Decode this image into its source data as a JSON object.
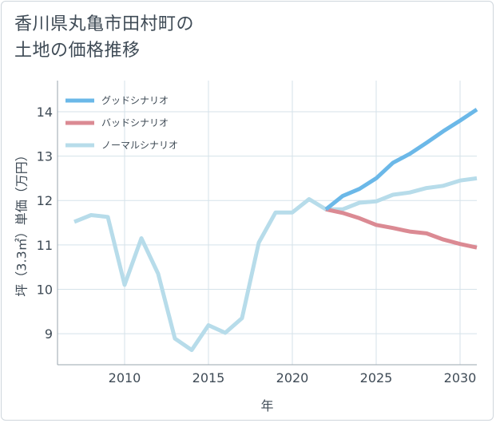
{
  "title": "香川県丸亀市田村町の\n土地の価格推移",
  "colors": {
    "good": "#6bb8e8",
    "bad": "#db8a93",
    "normal": "#b7dcea",
    "grid": "#d5e2ea",
    "axis": "#9aa5ae"
  },
  "chart_data": {
    "type": "line",
    "title": "香川県丸亀市田村町の土地の価格推移",
    "xlabel": "年",
    "ylabel": "坪（3.3㎡）単価（万円）",
    "xlim": [
      2006,
      2031
    ],
    "ylim": [
      8.3,
      14.7
    ],
    "xticks": [
      2010,
      2015,
      2020,
      2025,
      2030
    ],
    "yticks": [
      9,
      10,
      11,
      12,
      13,
      14
    ],
    "legend_position": "top-left",
    "series": [
      {
        "key": "good",
        "name": "グッドシナリオ",
        "x": [
          2022,
          2023,
          2024,
          2025,
          2026,
          2027,
          2028,
          2029,
          2030,
          2031
        ],
        "values": [
          11.8,
          12.1,
          12.26,
          12.5,
          12.85,
          13.05,
          13.3,
          13.56,
          13.8,
          14.05
        ]
      },
      {
        "key": "bad",
        "name": "バッドシナリオ",
        "x": [
          2022,
          2023,
          2024,
          2025,
          2026,
          2027,
          2028,
          2029,
          2030,
          2031
        ],
        "values": [
          11.8,
          11.72,
          11.6,
          11.45,
          11.38,
          11.3,
          11.26,
          11.12,
          11.02,
          10.94
        ]
      },
      {
        "key": "normal",
        "name": "ノーマルシナリオ",
        "x": [
          2007,
          2008,
          2009,
          2010,
          2011,
          2012,
          2013,
          2014,
          2015,
          2016,
          2017,
          2018,
          2019,
          2020,
          2021,
          2022,
          2023,
          2024,
          2025,
          2026,
          2027,
          2028,
          2029,
          2030,
          2031
        ],
        "values": [
          11.52,
          11.67,
          11.63,
          10.1,
          11.15,
          10.35,
          8.89,
          8.63,
          9.19,
          9.02,
          9.35,
          11.05,
          11.73,
          11.73,
          12.03,
          11.8,
          11.8,
          11.95,
          11.98,
          12.13,
          12.18,
          12.28,
          12.33,
          12.45,
          12.5
        ]
      }
    ]
  }
}
